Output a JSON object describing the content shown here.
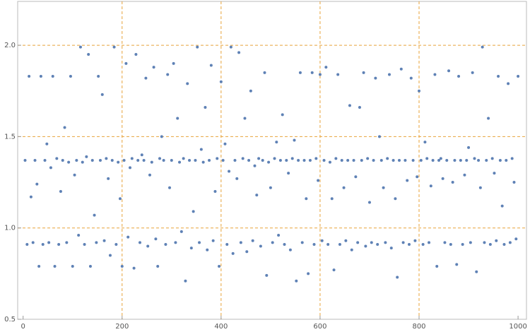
{
  "chart_data": {
    "type": "scatter",
    "color": "#5e81b5",
    "xlim": [
      -11,
      1017
    ],
    "ylim": [
      0.5,
      2.24
    ],
    "xticks": [
      0,
      200,
      400,
      600,
      800,
      1000
    ],
    "yticks": [
      0.5,
      {
        "value": 1,
        "label": "1.0"
      },
      {
        "value": 1.5,
        "label": "1.5"
      },
      {
        "value": 2,
        "label": "2.0"
      }
    ],
    "grid": true,
    "grid_color": "#e8a33a",
    "x": [
      4,
      8,
      12,
      16,
      20,
      24,
      28,
      32,
      36,
      40,
      44,
      48,
      52,
      56,
      60,
      64,
      68,
      72,
      76,
      80,
      84,
      88,
      92,
      96,
      100,
      104,
      108,
      112,
      116,
      120,
      124,
      128,
      132,
      136,
      140,
      144,
      148,
      152,
      156,
      160,
      164,
      168,
      172,
      176,
      180,
      184,
      188,
      192,
      196,
      200,
      204,
      208,
      212,
      216,
      220,
      224,
      228,
      232,
      236,
      240,
      244,
      248,
      252,
      256,
      260,
      264,
      268,
      272,
      276,
      280,
      284,
      288,
      292,
      296,
      300,
      304,
      308,
      312,
      316,
      320,
      324,
      328,
      332,
      336,
      340,
      344,
      348,
      352,
      356,
      360,
      364,
      368,
      372,
      376,
      380,
      384,
      388,
      392,
      396,
      400,
      404,
      408,
      412,
      416,
      420,
      424,
      428,
      432,
      436,
      440,
      444,
      448,
      452,
      456,
      460,
      464,
      468,
      472,
      476,
      480,
      484,
      488,
      492,
      496,
      500,
      504,
      508,
      512,
      516,
      520,
      524,
      528,
      532,
      536,
      540,
      544,
      548,
      552,
      556,
      560,
      564,
      568,
      572,
      576,
      580,
      584,
      588,
      592,
      596,
      600,
      604,
      608,
      612,
      616,
      620,
      624,
      628,
      632,
      636,
      640,
      644,
      648,
      652,
      656,
      660,
      664,
      668,
      672,
      676,
      680,
      684,
      688,
      692,
      696,
      700,
      704,
      708,
      712,
      716,
      720,
      724,
      728,
      732,
      736,
      740,
      744,
      748,
      752,
      756,
      760,
      764,
      768,
      772,
      776,
      780,
      784,
      788,
      792,
      796,
      800,
      804,
      808,
      812,
      816,
      820,
      824,
      828,
      832,
      836,
      840,
      844,
      848,
      852,
      856,
      860,
      864,
      868,
      872,
      876,
      880,
      884,
      888,
      892,
      896,
      900,
      904,
      908,
      912,
      916,
      920,
      924,
      928,
      932,
      936,
      940,
      944,
      948,
      952,
      956,
      960,
      964,
      968,
      972,
      976,
      980,
      984,
      988,
      992,
      996,
      1000
    ],
    "y": [
      1.37,
      0.91,
      1.83,
      1.17,
      0.92,
      1.37,
      1.24,
      0.79,
      1.83,
      0.91,
      1.37,
      1.46,
      0.92,
      1.33,
      1.83,
      0.79,
      1.38,
      0.91,
      1.2,
      1.37,
      1.55,
      0.92,
      1.36,
      1.83,
      0.79,
      1.29,
      1.37,
      0.96,
      1.99,
      1.36,
      0.91,
      1.39,
      1.95,
      0.79,
      1.37,
      1.07,
      0.92,
      1.83,
      1.37,
      1.73,
      0.93,
      1.38,
      1.27,
      0.85,
      1.37,
      1.99,
      0.91,
      1.36,
      1.16,
      0.79,
      1.37,
      1.9,
      0.95,
      1.33,
      1.38,
      0.78,
      1.95,
      1.37,
      0.92,
      1.4,
      1.37,
      1.82,
      0.9,
      1.29,
      1.36,
      1.88,
      0.94,
      0.79,
      1.38,
      1.5,
      1.37,
      0.91,
      1.84,
      1.22,
      1.37,
      1.9,
      0.92,
      1.6,
      1.36,
      0.98,
      1.38,
      0.71,
      1.79,
      1.37,
      0.89,
      1.09,
      1.37,
      1.99,
      0.92,
      1.43,
      1.36,
      1.66,
      0.88,
      1.37,
      1.89,
      0.93,
      1.2,
      1.38,
      0.79,
      1.8,
      1.37,
      1.46,
      0.91,
      1.31,
      1.99,
      0.86,
      1.37,
      1.27,
      1.96,
      0.92,
      1.38,
      1.6,
      0.87,
      1.37,
      1.75,
      0.93,
      1.34,
      1.18,
      1.38,
      0.9,
      1.37,
      1.85,
      0.74,
      1.36,
      1.22,
      0.92,
      1.38,
      1.47,
      0.96,
      1.37,
      1.62,
      0.91,
      1.37,
      1.3,
      0.88,
      1.38,
      1.48,
      0.71,
      1.37,
      1.85,
      0.92,
      1.37,
      1.16,
      0.75,
      1.37,
      1.85,
      0.91,
      1.38,
      1.26,
      1.84,
      0.93,
      1.37,
      1.88,
      0.91,
      1.36,
      1.16,
      0.77,
      1.38,
      1.84,
      0.91,
      1.37,
      1.22,
      0.93,
      1.37,
      1.67,
      0.88,
      1.37,
      1.28,
      0.92,
      1.66,
      1.37,
      1.85,
      0.9,
      1.38,
      1.14,
      0.92,
      1.37,
      1.82,
      0.91,
      1.5,
      1.37,
      1.22,
      0.92,
      1.38,
      1.84,
      0.89,
      1.37,
      1.16,
      0.73,
      1.37,
      1.87,
      0.92,
      1.37,
      1.26,
      0.91,
      1.82,
      1.37,
      0.93,
      1.28,
      1.75,
      1.37,
      0.91,
      1.47,
      1.38,
      0.92,
      1.23,
      1.37,
      1.84,
      0.79,
      1.37,
      1.38,
      1.27,
      0.92,
      1.37,
      1.86,
      0.91,
      1.25,
      1.37,
      0.8,
      1.83,
      1.37,
      0.91,
      1.29,
      1.37,
      1.44,
      0.92,
      1.85,
      1.38,
      0.76,
      1.37,
      1.22,
      1.99,
      0.92,
      1.37,
      1.6,
      0.91,
      1.38,
      1.3,
      0.93,
      1.83,
      1.37,
      1.12,
      0.91,
      1.37,
      1.79,
      0.92,
      1.38,
      1.25,
      0.94,
      1.83
    ]
  }
}
